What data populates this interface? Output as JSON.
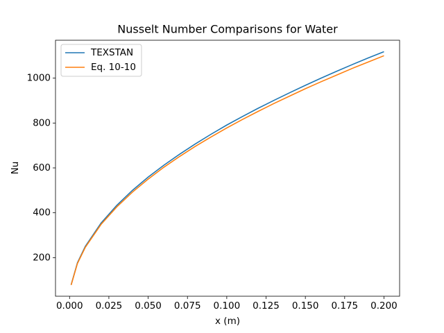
{
  "chart_data": {
    "type": "line",
    "title": "Nusselt Number Comparisons for Water",
    "x_label": "x (m)",
    "y_label": "Nu",
    "x": [
      0.001,
      0.005,
      0.01,
      0.02,
      0.03,
      0.04,
      0.05,
      0.06,
      0.07,
      0.08,
      0.09,
      0.1,
      0.11,
      0.12,
      0.13,
      0.14,
      0.15,
      0.16,
      0.17,
      0.18,
      0.19,
      0.2
    ],
    "series": [
      {
        "name": "TEXSTAN",
        "color": "#1f77b4",
        "values": [
          79,
          177,
          250,
          354,
          433,
          500,
          559,
          612,
          661,
          707,
          750,
          791,
          829,
          866,
          901,
          935,
          968,
          1000,
          1031,
          1061,
          1090,
          1118
        ]
      },
      {
        "name": "Eq. 10-10",
        "color": "#ff7f0e",
        "values": [
          78,
          174,
          246,
          348,
          426,
          492,
          550,
          603,
          651,
          696,
          738,
          778,
          816,
          852,
          887,
          920,
          953,
          984,
          1014,
          1044,
          1072,
          1100
        ]
      }
    ],
    "xlim": [
      -0.00895,
      0.20995
    ],
    "ylim": [
      28,
      1169
    ],
    "xticks": [
      {
        "value": 0,
        "label": "0.000"
      },
      0.025,
      {
        "value": 0.05,
        "label": "0.050"
      },
      0.075,
      {
        "value": 0.1,
        "label": "0.100"
      },
      0.125,
      {
        "value": 0.15,
        "label": "0.150"
      },
      0.175,
      {
        "value": 0.2,
        "label": "0.200"
      }
    ],
    "yticks": [
      200,
      400,
      600,
      800,
      1000
    ],
    "grid": false,
    "legend": "upper-left"
  }
}
